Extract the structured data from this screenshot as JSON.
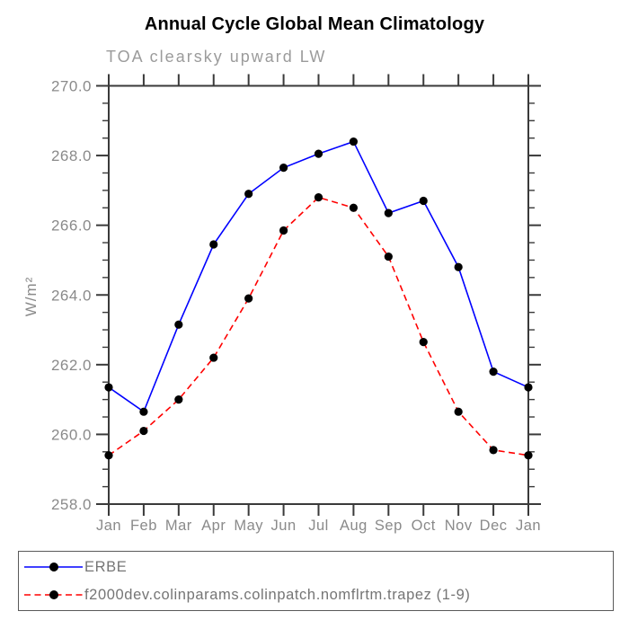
{
  "title": "Annual Cycle Global Mean Climatology",
  "subtitle": "TOA clearsky upward LW",
  "ylabel": "W/m²",
  "colors": {
    "axis": "#3a3a3a",
    "tick_label": "#8a8a8a",
    "title": "#000000",
    "subtitle": "#9b9b9b",
    "legend_text": "#757575",
    "erbe_line": "#0000ff",
    "model_line": "#ff0000",
    "marker": "#000000"
  },
  "chart_data": {
    "type": "line",
    "title": "Annual Cycle Global Mean Climatology",
    "subtitle": "TOA clearsky upward LW",
    "xlabel": "",
    "ylabel": "W/m²",
    "x_categories": [
      "Jan",
      "Feb",
      "Mar",
      "Apr",
      "May",
      "Jun",
      "Jul",
      "Aug",
      "Sep",
      "Oct",
      "Nov",
      "Dec",
      "Jan"
    ],
    "ylim": [
      258.0,
      270.0
    ],
    "ytick_step": 2.0,
    "ytick_minor_step": 0.5,
    "ytick_labels": [
      "270.0",
      "268.0",
      "266.0",
      "264.0",
      "262.0",
      "260.0",
      "258.0"
    ],
    "grid": false,
    "legend_position": "bottom",
    "series": [
      {
        "name": "ERBE",
        "line_style": "solid",
        "color": "#0000ff",
        "marker": "circle",
        "marker_color": "#000000",
        "values": [
          261.35,
          260.65,
          263.15,
          265.45,
          266.9,
          267.65,
          268.05,
          268.4,
          266.35,
          266.7,
          264.8,
          261.8,
          261.35
        ]
      },
      {
        "name": "f2000dev.colinparams.colinpatch.nomflrtm.trapez (1-9)",
        "line_style": "dashed",
        "color": "#ff0000",
        "marker": "circle",
        "marker_color": "#000000",
        "values": [
          259.4,
          260.1,
          261.0,
          262.2,
          263.9,
          265.85,
          266.8,
          266.5,
          265.1,
          262.65,
          260.65,
          259.55,
          259.4
        ]
      }
    ]
  }
}
